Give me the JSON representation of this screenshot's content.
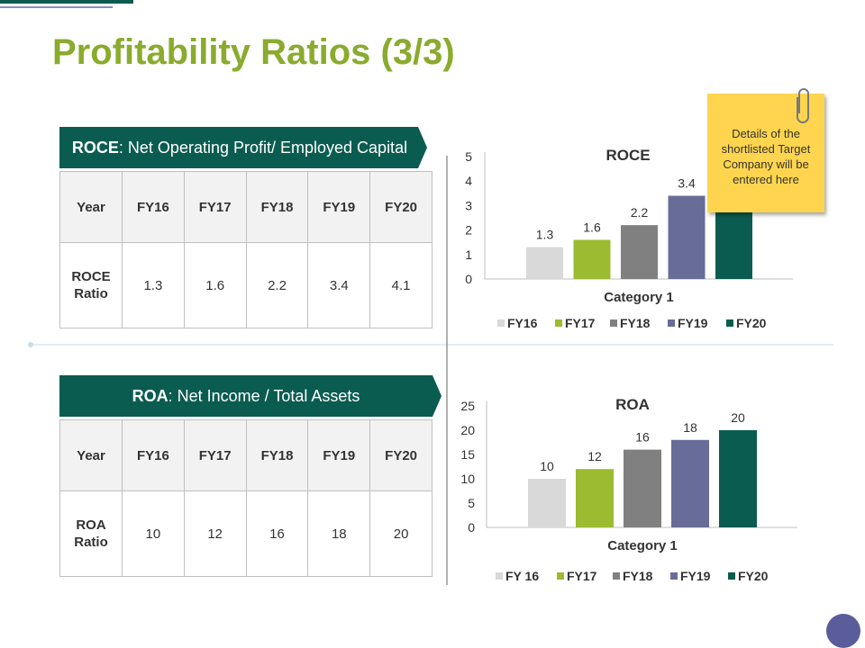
{
  "slide": {
    "title": "Profitability Ratios (3/3)",
    "note": "Details of the shortlisted Target Company will be entered here"
  },
  "roce": {
    "banner_bold": "ROCE",
    "banner_rest": ": Net Operating Profit/ Employed Capital",
    "header": [
      "Year",
      "FY16",
      "FY17",
      "FY18",
      "FY19",
      "FY20"
    ],
    "row_label": "ROCE Ratio",
    "row_values": [
      "1.3",
      "1.6",
      "2.2",
      "3.4",
      "4.1"
    ]
  },
  "roa": {
    "banner_bold": "ROA",
    "banner_rest": ": Net Income / Total Assets",
    "header": [
      "Year",
      "FY16",
      "FY17",
      "FY18",
      "FY19",
      "FY20"
    ],
    "row_label": "ROA Ratio",
    "row_values": [
      "10",
      "12",
      "16",
      "18",
      "20"
    ]
  },
  "colors": {
    "title": "#8aab2e",
    "banner": "#0b5c50",
    "fy16": "#d9d9d9",
    "fy17": "#9bbb30",
    "fy18": "#808080",
    "fy19": "#686c99",
    "fy20": "#0b5c50"
  },
  "chart_data": [
    {
      "type": "bar",
      "title": "ROCE",
      "categories": [
        "Category 1"
      ],
      "xlabel": "Category 1",
      "ylabel": "",
      "ylim": [
        0,
        5
      ],
      "yticks": [
        "0",
        "1",
        "2",
        "3",
        "4",
        "5"
      ],
      "legend_position": "bottom",
      "series": [
        {
          "name": "FY16",
          "values": [
            1.3
          ],
          "label": "1.3"
        },
        {
          "name": "FY17",
          "values": [
            1.6
          ],
          "label": "1.6"
        },
        {
          "name": "FY18",
          "values": [
            2.2
          ],
          "label": "2.2"
        },
        {
          "name": "FY19",
          "values": [
            3.4
          ],
          "label": "3.4"
        },
        {
          "name": "FY20",
          "values": [
            4.1
          ],
          "label": "4.1"
        }
      ]
    },
    {
      "type": "bar",
      "title": "ROA",
      "categories": [
        "Category 1"
      ],
      "xlabel": "Category 1",
      "ylabel": "",
      "ylim": [
        0,
        25
      ],
      "yticks": [
        "0",
        "5",
        "10",
        "15",
        "20",
        "25"
      ],
      "legend_position": "bottom",
      "series": [
        {
          "name": "FY 16",
          "values": [
            10
          ],
          "label": "10"
        },
        {
          "name": "FY17",
          "values": [
            12
          ],
          "label": "12"
        },
        {
          "name": "FY18",
          "values": [
            16
          ],
          "label": "16"
        },
        {
          "name": "FY19",
          "values": [
            18
          ],
          "label": "18"
        },
        {
          "name": "FY20",
          "values": [
            20
          ],
          "label": "20"
        }
      ]
    }
  ]
}
